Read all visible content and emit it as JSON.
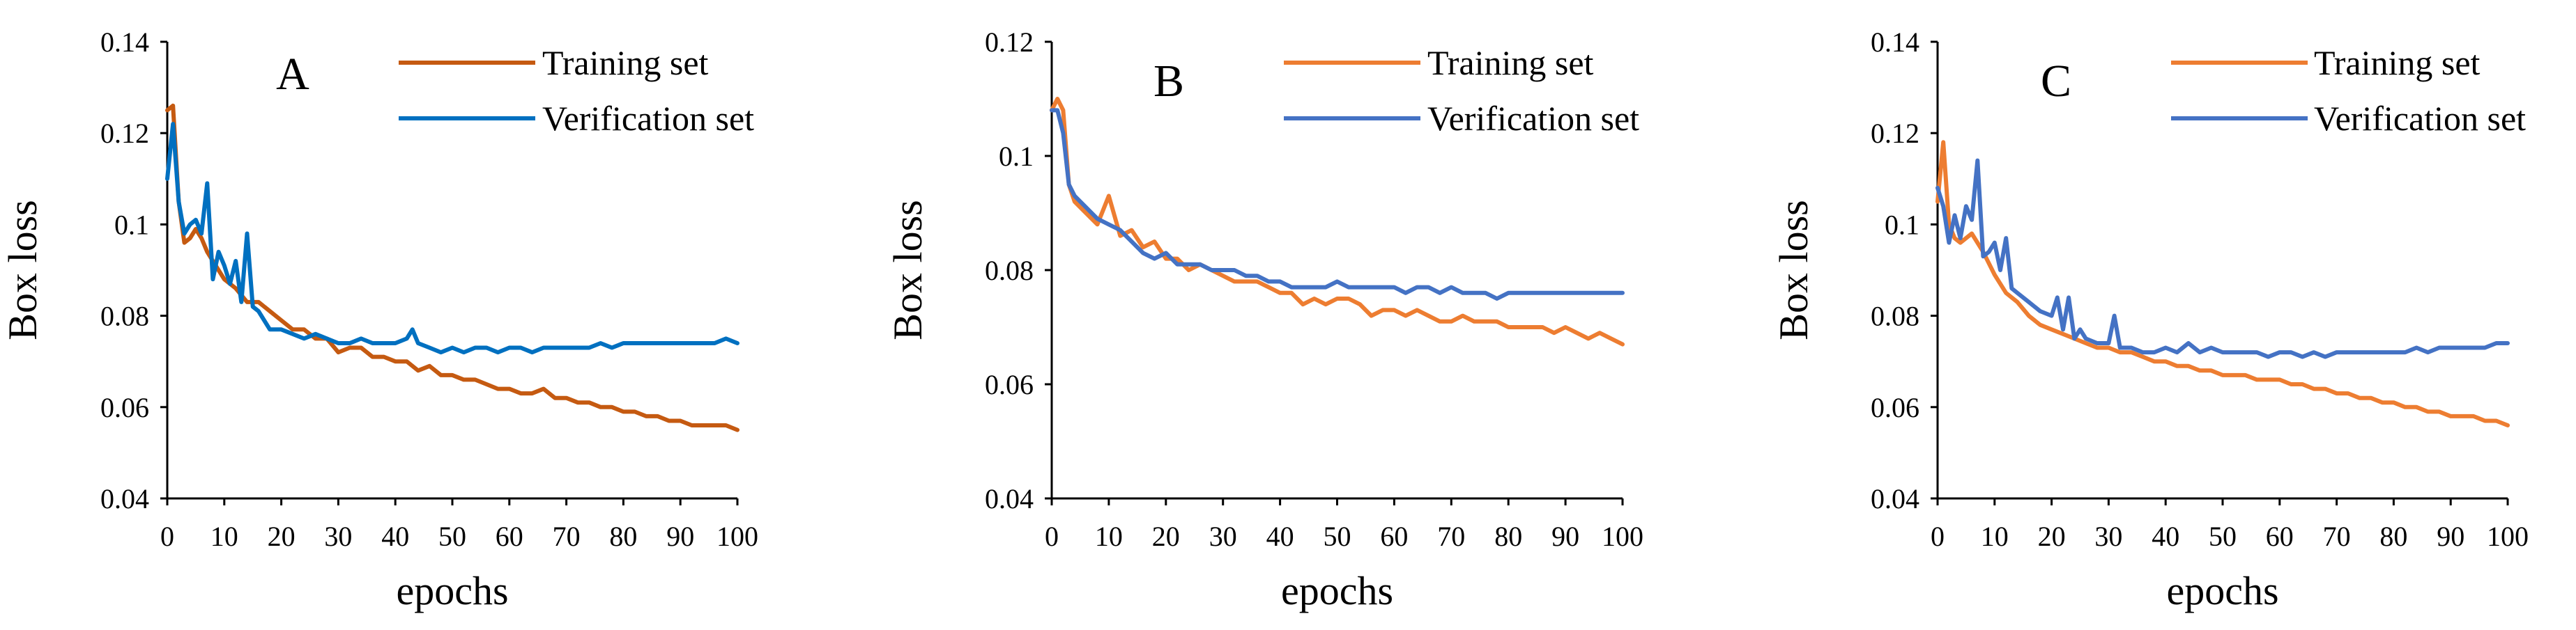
{
  "chart_data": [
    {
      "type": "line",
      "panel_label": "A",
      "xlabel": "epochs",
      "ylabel": "Box loss",
      "xlim": [
        0,
        100
      ],
      "ylim": [
        0.04,
        0.14
      ],
      "x_ticks": [
        0,
        10,
        20,
        30,
        40,
        50,
        60,
        70,
        80,
        90,
        100
      ],
      "y_ticks": [
        "0.04",
        "0.06",
        "0.08",
        "0.1",
        "0.12",
        "0.14"
      ],
      "legend_position": "top-right",
      "series": [
        {
          "name": "Training set",
          "color": "#C55A11",
          "x": [
            0,
            1,
            2,
            3,
            4,
            5,
            6,
            7,
            8,
            10,
            12,
            14,
            16,
            18,
            20,
            22,
            24,
            26,
            28,
            30,
            32,
            34,
            36,
            38,
            40,
            42,
            44,
            46,
            48,
            50,
            52,
            54,
            56,
            58,
            60,
            62,
            64,
            66,
            68,
            70,
            72,
            74,
            76,
            78,
            80,
            82,
            84,
            86,
            88,
            90,
            92,
            94,
            96,
            98,
            100
          ],
          "y": [
            0.125,
            0.126,
            0.105,
            0.096,
            0.097,
            0.099,
            0.097,
            0.094,
            0.092,
            0.088,
            0.086,
            0.083,
            0.083,
            0.081,
            0.079,
            0.077,
            0.077,
            0.075,
            0.075,
            0.072,
            0.073,
            0.073,
            0.071,
            0.071,
            0.07,
            0.07,
            0.068,
            0.069,
            0.067,
            0.067,
            0.066,
            0.066,
            0.065,
            0.064,
            0.064,
            0.063,
            0.063,
            0.064,
            0.062,
            0.062,
            0.061,
            0.061,
            0.06,
            0.06,
            0.059,
            0.059,
            0.058,
            0.058,
            0.057,
            0.057,
            0.056,
            0.056,
            0.056,
            0.056,
            0.055
          ]
        },
        {
          "name": "Verification set",
          "color": "#0070C0",
          "x": [
            0,
            1,
            2,
            3,
            4,
            5,
            6,
            7,
            8,
            9,
            10,
            11,
            12,
            13,
            14,
            15,
            16,
            18,
            20,
            22,
            24,
            26,
            28,
            30,
            32,
            34,
            36,
            38,
            40,
            42,
            43,
            44,
            46,
            48,
            50,
            52,
            54,
            56,
            58,
            60,
            62,
            64,
            66,
            68,
            70,
            72,
            74,
            76,
            78,
            80,
            82,
            84,
            86,
            88,
            90,
            92,
            94,
            96,
            98,
            100
          ],
          "y": [
            0.11,
            0.122,
            0.105,
            0.098,
            0.1,
            0.101,
            0.098,
            0.109,
            0.088,
            0.094,
            0.091,
            0.087,
            0.092,
            0.083,
            0.098,
            0.082,
            0.081,
            0.077,
            0.077,
            0.076,
            0.075,
            0.076,
            0.075,
            0.074,
            0.074,
            0.075,
            0.074,
            0.074,
            0.074,
            0.075,
            0.077,
            0.074,
            0.073,
            0.072,
            0.073,
            0.072,
            0.073,
            0.073,
            0.072,
            0.073,
            0.073,
            0.072,
            0.073,
            0.073,
            0.073,
            0.073,
            0.073,
            0.074,
            0.073,
            0.074,
            0.074,
            0.074,
            0.074,
            0.074,
            0.074,
            0.074,
            0.074,
            0.074,
            0.075,
            0.074
          ]
        }
      ]
    },
    {
      "type": "line",
      "panel_label": "B",
      "xlabel": "epochs",
      "ylabel": "Box loss",
      "xlim": [
        0,
        100
      ],
      "ylim": [
        0.04,
        0.12
      ],
      "x_ticks": [
        0,
        10,
        20,
        30,
        40,
        50,
        60,
        70,
        80,
        90,
        100
      ],
      "y_ticks": [
        "0.04",
        "0.06",
        "0.08",
        "0.1",
        "0.12"
      ],
      "legend_position": "top-right",
      "series": [
        {
          "name": "Training set",
          "color": "#ED7D31",
          "x": [
            0,
            1,
            2,
            3,
            4,
            6,
            8,
            10,
            12,
            14,
            16,
            18,
            20,
            22,
            24,
            26,
            28,
            30,
            32,
            34,
            36,
            38,
            40,
            42,
            44,
            46,
            48,
            50,
            52,
            54,
            56,
            58,
            60,
            62,
            64,
            66,
            68,
            70,
            72,
            74,
            76,
            78,
            80,
            82,
            84,
            86,
            88,
            90,
            92,
            94,
            96,
            98,
            100
          ],
          "y": [
            0.108,
            0.11,
            0.108,
            0.095,
            0.092,
            0.09,
            0.088,
            0.093,
            0.086,
            0.087,
            0.084,
            0.085,
            0.082,
            0.082,
            0.08,
            0.081,
            0.08,
            0.079,
            0.078,
            0.078,
            0.078,
            0.077,
            0.076,
            0.076,
            0.074,
            0.075,
            0.074,
            0.075,
            0.075,
            0.074,
            0.072,
            0.073,
            0.073,
            0.072,
            0.073,
            0.072,
            0.071,
            0.071,
            0.072,
            0.071,
            0.071,
            0.071,
            0.07,
            0.07,
            0.07,
            0.07,
            0.069,
            0.07,
            0.069,
            0.068,
            0.069,
            0.068,
            0.067
          ]
        },
        {
          "name": "Verification set",
          "color": "#4472C4",
          "x": [
            0,
            1,
            2,
            3,
            4,
            6,
            8,
            10,
            12,
            14,
            16,
            18,
            20,
            22,
            24,
            26,
            28,
            30,
            32,
            34,
            36,
            38,
            40,
            42,
            44,
            46,
            48,
            50,
            52,
            54,
            56,
            58,
            60,
            62,
            64,
            66,
            68,
            70,
            72,
            74,
            76,
            78,
            80,
            82,
            84,
            86,
            88,
            90,
            92,
            94,
            96,
            98,
            100
          ],
          "y": [
            0.108,
            0.108,
            0.104,
            0.095,
            0.093,
            0.091,
            0.089,
            0.088,
            0.087,
            0.085,
            0.083,
            0.082,
            0.083,
            0.081,
            0.081,
            0.081,
            0.08,
            0.08,
            0.08,
            0.079,
            0.079,
            0.078,
            0.078,
            0.077,
            0.077,
            0.077,
            0.077,
            0.078,
            0.077,
            0.077,
            0.077,
            0.077,
            0.077,
            0.076,
            0.077,
            0.077,
            0.076,
            0.077,
            0.076,
            0.076,
            0.076,
            0.075,
            0.076,
            0.076,
            0.076,
            0.076,
            0.076,
            0.076,
            0.076,
            0.076,
            0.076,
            0.076,
            0.076
          ]
        }
      ]
    },
    {
      "type": "line",
      "panel_label": "C",
      "xlabel": "epochs",
      "ylabel": "Box loss",
      "xlim": [
        0,
        100
      ],
      "ylim": [
        0.04,
        0.14
      ],
      "x_ticks": [
        0,
        10,
        20,
        30,
        40,
        50,
        60,
        70,
        80,
        90,
        100
      ],
      "y_ticks": [
        "0.04",
        "0.06",
        "0.08",
        "0.1",
        "0.12",
        "0.14"
      ],
      "legend_position": "top-right",
      "series": [
        {
          "name": "Training set",
          "color": "#ED7D31",
          "x": [
            0,
            1,
            2,
            3,
            4,
            6,
            8,
            10,
            12,
            14,
            16,
            18,
            20,
            22,
            24,
            26,
            28,
            30,
            32,
            34,
            36,
            38,
            40,
            42,
            44,
            46,
            48,
            50,
            52,
            54,
            56,
            58,
            60,
            62,
            64,
            66,
            68,
            70,
            72,
            74,
            76,
            78,
            80,
            82,
            84,
            86,
            88,
            90,
            92,
            94,
            96,
            98,
            100
          ],
          "y": [
            0.105,
            0.118,
            0.1,
            0.097,
            0.096,
            0.098,
            0.094,
            0.089,
            0.085,
            0.083,
            0.08,
            0.078,
            0.077,
            0.076,
            0.075,
            0.074,
            0.073,
            0.073,
            0.072,
            0.072,
            0.071,
            0.07,
            0.07,
            0.069,
            0.069,
            0.068,
            0.068,
            0.067,
            0.067,
            0.067,
            0.066,
            0.066,
            0.066,
            0.065,
            0.065,
            0.064,
            0.064,
            0.063,
            0.063,
            0.062,
            0.062,
            0.061,
            0.061,
            0.06,
            0.06,
            0.059,
            0.059,
            0.058,
            0.058,
            0.058,
            0.057,
            0.057,
            0.056
          ]
        },
        {
          "name": "Verification set",
          "color": "#4472C4",
          "x": [
            0,
            1,
            2,
            3,
            4,
            5,
            6,
            7,
            8,
            9,
            10,
            11,
            12,
            13,
            14,
            16,
            18,
            20,
            21,
            22,
            23,
            24,
            25,
            26,
            28,
            30,
            31,
            32,
            34,
            36,
            38,
            40,
            42,
            44,
            46,
            48,
            50,
            52,
            54,
            56,
            58,
            60,
            62,
            64,
            66,
            68,
            70,
            72,
            74,
            76,
            78,
            80,
            82,
            84,
            86,
            88,
            90,
            92,
            94,
            96,
            98,
            100
          ],
          "y": [
            0.108,
            0.104,
            0.096,
            0.102,
            0.097,
            0.104,
            0.101,
            0.114,
            0.093,
            0.094,
            0.096,
            0.09,
            0.097,
            0.086,
            0.085,
            0.083,
            0.081,
            0.08,
            0.084,
            0.077,
            0.084,
            0.075,
            0.077,
            0.075,
            0.074,
            0.074,
            0.08,
            0.073,
            0.073,
            0.072,
            0.072,
            0.073,
            0.072,
            0.074,
            0.072,
            0.073,
            0.072,
            0.072,
            0.072,
            0.072,
            0.071,
            0.072,
            0.072,
            0.071,
            0.072,
            0.071,
            0.072,
            0.072,
            0.072,
            0.072,
            0.072,
            0.072,
            0.072,
            0.073,
            0.072,
            0.073,
            0.073,
            0.073,
            0.073,
            0.073,
            0.074,
            0.074
          ]
        }
      ]
    }
  ]
}
